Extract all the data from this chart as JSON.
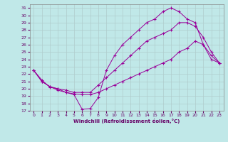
{
  "xlabel": "Windchill (Refroidissement éolien,°C)",
  "bg_color": "#c0e8e8",
  "line_color": "#990099",
  "grid_color": "#b0cccc",
  "xlim": [
    -0.5,
    23.5
  ],
  "ylim": [
    17,
    31.5
  ],
  "yticks": [
    17,
    18,
    19,
    20,
    21,
    22,
    23,
    24,
    25,
    26,
    27,
    28,
    29,
    30,
    31
  ],
  "xticks": [
    0,
    1,
    2,
    3,
    4,
    5,
    6,
    7,
    8,
    9,
    10,
    11,
    12,
    13,
    14,
    15,
    16,
    17,
    18,
    19,
    20,
    21,
    22,
    23
  ],
  "series": [
    {
      "x": [
        0,
        1,
        2,
        3,
        4,
        5,
        6,
        7,
        8,
        9,
        10,
        11,
        12,
        13,
        14,
        15,
        16,
        17,
        18,
        19,
        20,
        21,
        22,
        23
      ],
      "y": [
        22.5,
        21.2,
        20.2,
        20.0,
        19.5,
        19.2,
        17.2,
        17.3,
        18.8,
        22.5,
        24.5,
        26.0,
        27.0,
        28.0,
        29.0,
        29.5,
        30.5,
        31.0,
        30.5,
        29.5,
        29.0,
        26.0,
        24.5,
        23.5
      ]
    },
    {
      "x": [
        0,
        1,
        2,
        3,
        4,
        5,
        6,
        7,
        8,
        9,
        10,
        11,
        12,
        13,
        14,
        15,
        16,
        17,
        18,
        19,
        20,
        21,
        22,
        23
      ],
      "y": [
        22.5,
        21.0,
        20.3,
        20.0,
        19.8,
        19.5,
        19.5,
        19.5,
        20.5,
        21.5,
        22.5,
        23.5,
        24.5,
        25.5,
        26.5,
        27.0,
        27.5,
        28.0,
        29.0,
        29.0,
        28.5,
        27.0,
        25.0,
        23.5
      ]
    },
    {
      "x": [
        0,
        1,
        2,
        3,
        4,
        5,
        6,
        7,
        8,
        9,
        10,
        11,
        12,
        13,
        14,
        15,
        16,
        17,
        18,
        19,
        20,
        21,
        22,
        23
      ],
      "y": [
        22.5,
        21.0,
        20.3,
        19.8,
        19.5,
        19.3,
        19.2,
        19.2,
        19.5,
        20.0,
        20.5,
        21.0,
        21.5,
        22.0,
        22.5,
        23.0,
        23.5,
        24.0,
        25.0,
        25.5,
        26.5,
        26.0,
        24.0,
        23.5
      ]
    }
  ]
}
